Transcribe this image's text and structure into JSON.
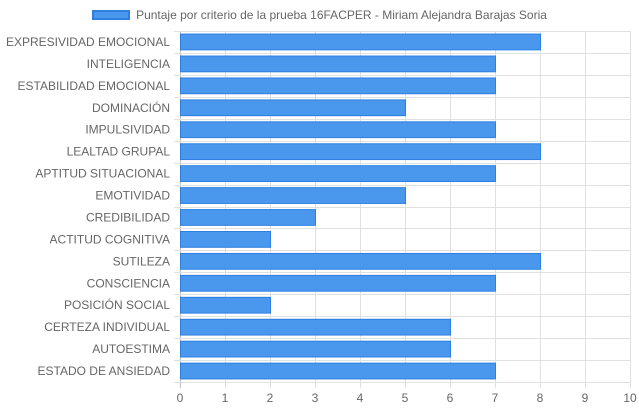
{
  "chart_data": {
    "type": "bar",
    "orientation": "horizontal",
    "title": "",
    "xlabel": "",
    "ylabel": "",
    "legend_position": "top-center",
    "grid": true,
    "xlim": [
      0,
      10
    ],
    "x_ticks": [
      "0",
      "1",
      "2",
      "3",
      "4",
      "5",
      "6",
      "7",
      "8",
      "9",
      "10"
    ],
    "categories": [
      "EXPRESIVIDAD EMOCIONAL",
      "INTELIGENCIA",
      "ESTABILIDAD EMOCIONAL",
      "DOMINACIÓN",
      "IMPULSIVIDAD",
      "LEALTAD GRUPAL",
      "APTITUD SITUACIONAL",
      "EMOTIVIDAD",
      "CREDIBILIDAD",
      "ACTITUD COGNITIVA",
      "SUTILEZA",
      "CONSCIENCIA",
      "POSICIÓN SOCIAL",
      "CERTEZA INDIVIDUAL",
      "AUTOESTIMA",
      "ESTADO DE ANSIEDAD"
    ],
    "series": [
      {
        "name": "Puntaje por criterio de la prueba 16FACPER - Miriam Alejandra Barajas Soria",
        "values": [
          8,
          7,
          7,
          5,
          7,
          8,
          7,
          5,
          3,
          2,
          8,
          7,
          2,
          6,
          6,
          7
        ],
        "color": "#4a97ee",
        "border_color": "#2e7fe0"
      }
    ]
  }
}
